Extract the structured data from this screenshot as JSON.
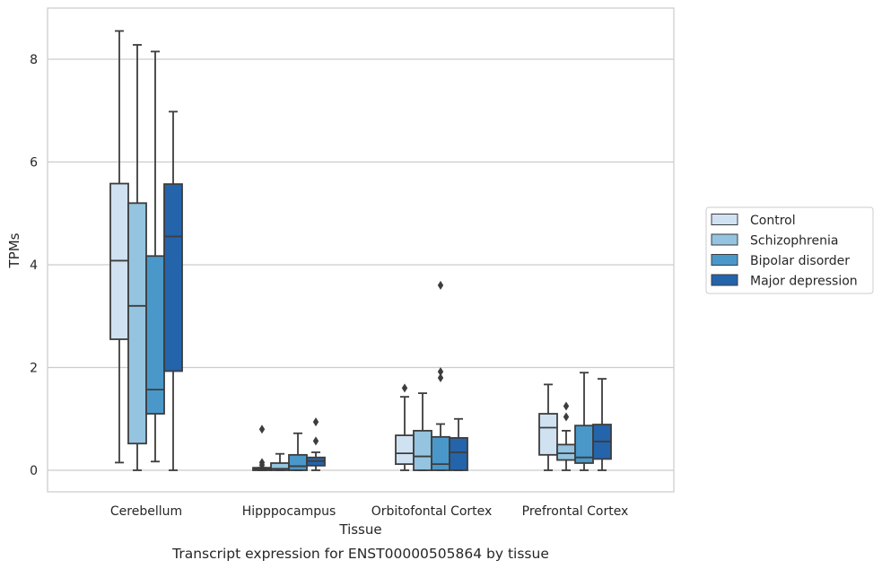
{
  "chart_data": {
    "type": "box",
    "title": "Transcript expression for ENST00000505864 by tissue",
    "xlabel": "Tissue",
    "ylabel": "TPMs",
    "ylim": [
      -0.4,
      9.0
    ],
    "yticks": [
      0,
      2,
      4,
      6,
      8
    ],
    "grid": "horizontal",
    "legend_position": "right",
    "categories": [
      "Cerebellum",
      "Hipppocampus",
      "Orbitofontal Cortex",
      "Prefrontal Cortex"
    ],
    "series": [
      {
        "name": "Control",
        "color": "#d0e1f2",
        "boxes": [
          {
            "whislo": 0.15,
            "q1": 2.55,
            "med": 4.08,
            "q3": 5.58,
            "whishi": 8.55,
            "fliers": []
          },
          {
            "whislo": 0.0,
            "q1": 0.0,
            "med": 0.02,
            "q3": 0.05,
            "whishi": 0.05,
            "fliers": [
              0.8,
              0.15,
              0.1
            ]
          },
          {
            "whislo": 0.0,
            "q1": 0.12,
            "med": 0.33,
            "q3": 0.68,
            "whishi": 1.43,
            "fliers": [
              1.6
            ]
          },
          {
            "whislo": 0.0,
            "q1": 0.3,
            "med": 0.83,
            "q3": 1.1,
            "whishi": 1.67,
            "fliers": []
          }
        ]
      },
      {
        "name": "Schizophrenia",
        "color": "#94c4df",
        "boxes": [
          {
            "whislo": 0.0,
            "q1": 0.52,
            "med": 3.2,
            "q3": 5.2,
            "whishi": 8.28,
            "fliers": []
          },
          {
            "whislo": 0.0,
            "q1": 0.0,
            "med": 0.03,
            "q3": 0.14,
            "whishi": 0.32,
            "fliers": []
          },
          {
            "whislo": 0.0,
            "q1": 0.0,
            "med": 0.27,
            "q3": 0.77,
            "whishi": 1.5,
            "fliers": []
          },
          {
            "whislo": 0.0,
            "q1": 0.2,
            "med": 0.33,
            "q3": 0.5,
            "whishi": 0.77,
            "fliers": [
              1.25,
              1.04
            ]
          }
        ]
      },
      {
        "name": "Bipolar disorder",
        "color": "#4a98c9",
        "boxes": [
          {
            "whislo": 0.17,
            "q1": 1.1,
            "med": 1.57,
            "q3": 4.17,
            "whishi": 8.15,
            "fliers": []
          },
          {
            "whislo": 0.0,
            "q1": 0.0,
            "med": 0.08,
            "q3": 0.3,
            "whishi": 0.72,
            "fliers": []
          },
          {
            "whislo": 0.0,
            "q1": 0.0,
            "med": 0.12,
            "q3": 0.65,
            "whishi": 0.9,
            "fliers": [
              3.6,
              1.92,
              1.8
            ]
          },
          {
            "whislo": 0.0,
            "q1": 0.14,
            "med": 0.25,
            "q3": 0.87,
            "whishi": 1.9,
            "fliers": []
          }
        ]
      },
      {
        "name": "Major depression",
        "color": "#2464ab",
        "boxes": [
          {
            "whislo": 0.0,
            "q1": 1.93,
            "med": 4.55,
            "q3": 5.57,
            "whishi": 6.98,
            "fliers": []
          },
          {
            "whislo": 0.0,
            "q1": 0.09,
            "med": 0.18,
            "q3": 0.25,
            "whishi": 0.35,
            "fliers": [
              0.94,
              0.57
            ]
          },
          {
            "whislo": 0.0,
            "q1": 0.0,
            "med": 0.35,
            "q3": 0.63,
            "whishi": 1.0,
            "fliers": []
          },
          {
            "whislo": 0.0,
            "q1": 0.22,
            "med": 0.56,
            "q3": 0.89,
            "whishi": 1.78,
            "fliers": []
          }
        ]
      }
    ]
  }
}
